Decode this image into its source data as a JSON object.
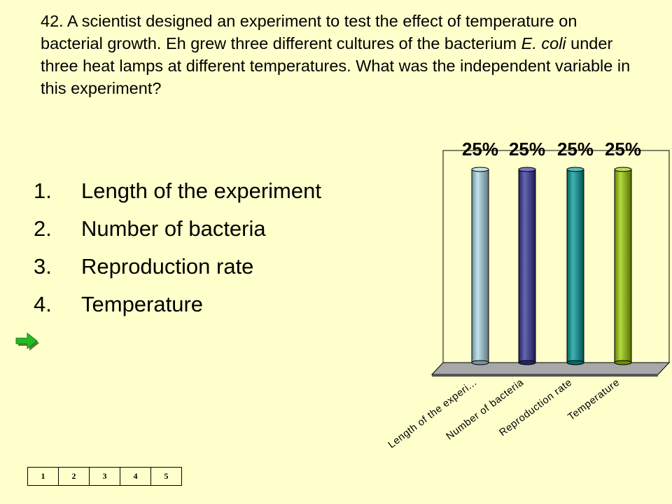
{
  "question": {
    "before": "42.  A scientist designed an experiment to test the effect of temperature on bacterial growth.  Eh grew three different cultures of the bacterium ",
    "species": "E. coli",
    "after": " under three heat lamps at different temperatures.   What was the independent variable in this experiment?"
  },
  "answers": [
    {
      "number": "1.",
      "text": "Length of the experiment"
    },
    {
      "number": "2.",
      "text": "Number of bacteria"
    },
    {
      "number": "3.",
      "text": "Reproduction rate"
    },
    {
      "number": "4.",
      "text": "Temperature"
    }
  ],
  "correct_marker": {
    "answer": "4.",
    "icon": "green-arrow-icon",
    "color": "#22BB22"
  },
  "chart_data": {
    "type": "bar",
    "categories": [
      "Length of the experi...",
      "Number of bacteria",
      "Reproduction rate",
      "Temperature"
    ],
    "values": [
      25,
      25,
      25,
      25
    ],
    "value_labels": [
      "25%",
      "25%",
      "25%",
      "25%"
    ],
    "colors": [
      "#ADD8E6",
      "#333399",
      "#009999",
      "#99CC00"
    ],
    "ylim": [
      0,
      25
    ],
    "style": "3d-cylinder",
    "grid": false,
    "legend": "none"
  },
  "pager": {
    "items": [
      "1",
      "2",
      "3",
      "4",
      "5"
    ]
  }
}
